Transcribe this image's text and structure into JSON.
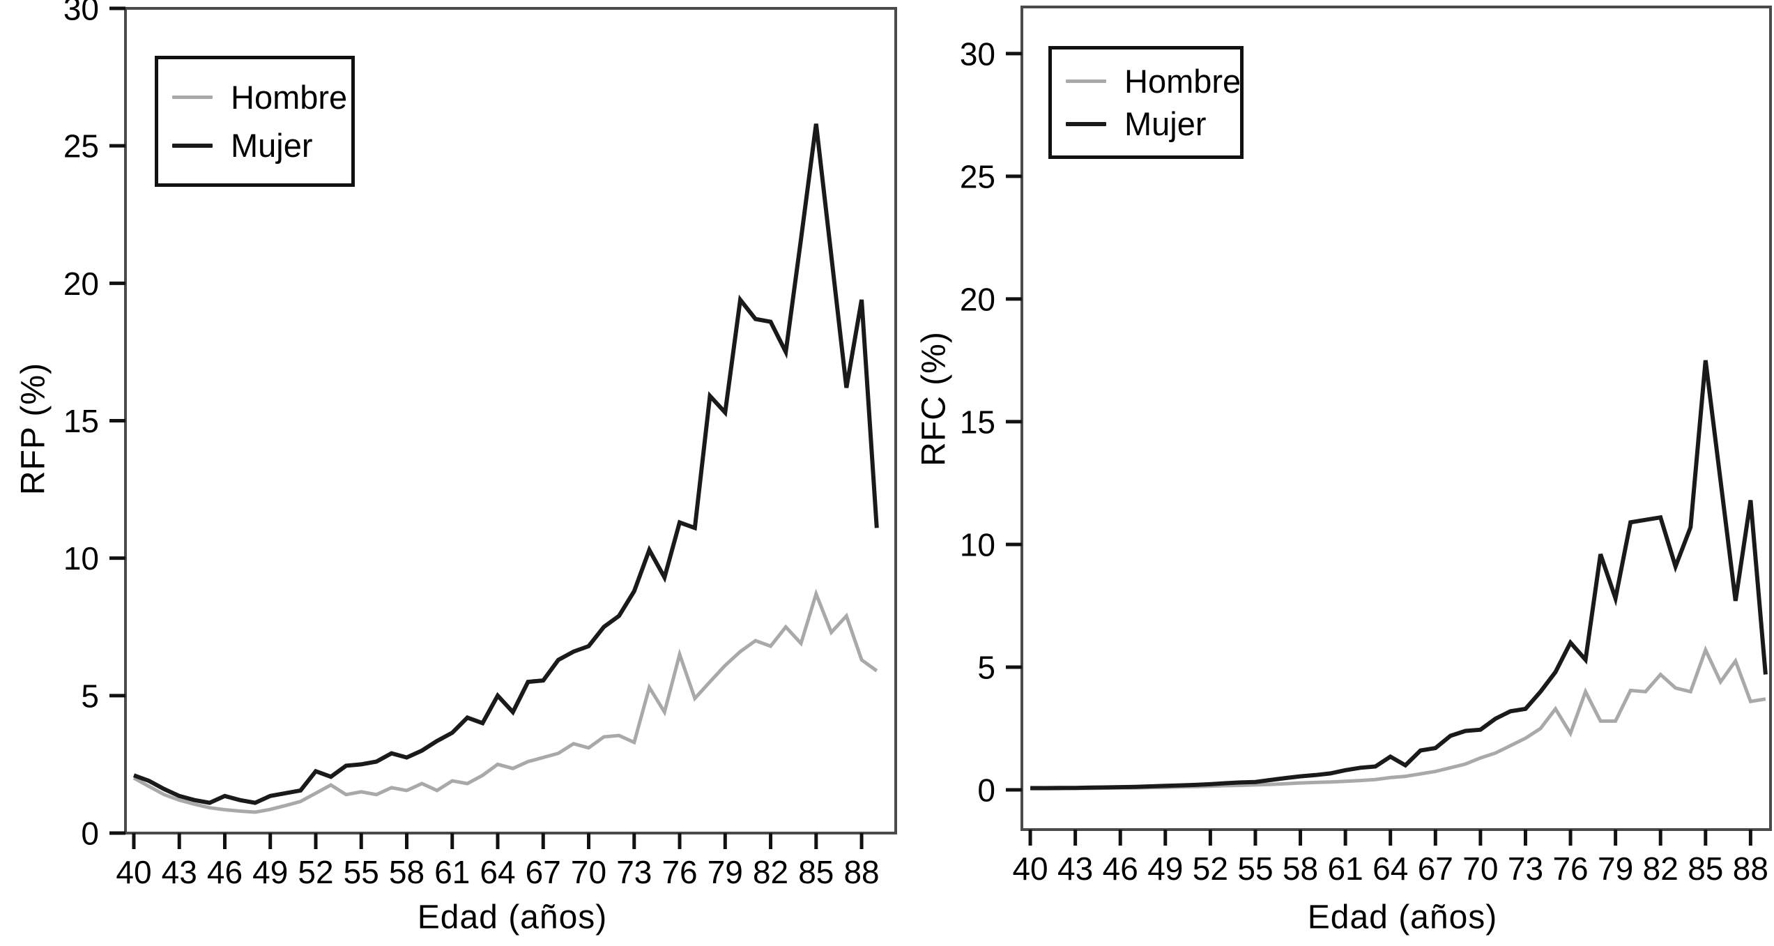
{
  "figure": {
    "background": "#ffffff",
    "axis_color": "#4a4a4a",
    "tick_color": "#111111",
    "text_color": "#000000"
  },
  "chart_data": [
    {
      "type": "line",
      "title": "",
      "xlabel": "Edad (años)",
      "ylabel": "RFP (%)",
      "xlim": [
        39.45,
        90.25
      ],
      "ylim": [
        0,
        30
      ],
      "x_ticks": [
        40,
        43,
        46,
        49,
        52,
        55,
        58,
        61,
        64,
        67,
        70,
        73,
        76,
        79,
        82,
        85,
        88
      ],
      "y_ticks": [
        0,
        5,
        10,
        15,
        20,
        25,
        30
      ],
      "grid": false,
      "legend_position": "top-left",
      "x": [
        40,
        41,
        42,
        43,
        44,
        45,
        46,
        47,
        48,
        49,
        50,
        51,
        52,
        53,
        54,
        55,
        56,
        57,
        58,
        59,
        60,
        61,
        62,
        63,
        64,
        65,
        66,
        67,
        68,
        69,
        70,
        71,
        72,
        73,
        74,
        75,
        76,
        77,
        78,
        79,
        80,
        81,
        82,
        83,
        84,
        85,
        86,
        87,
        88,
        89
      ],
      "series": [
        {
          "name": "Hombre",
          "color": "#a9a9a9",
          "width": 5,
          "values": [
            2.0,
            1.7,
            1.4,
            1.2,
            1.05,
            0.92,
            0.85,
            0.8,
            0.76,
            0.86,
            1.0,
            1.15,
            1.45,
            1.75,
            1.4,
            1.5,
            1.4,
            1.65,
            1.55,
            1.8,
            1.55,
            1.9,
            1.8,
            2.1,
            2.5,
            2.35,
            2.6,
            2.75,
            2.9,
            3.25,
            3.1,
            3.5,
            3.55,
            3.3,
            5.3,
            4.4,
            6.5,
            4.9,
            5.5,
            6.1,
            6.6,
            7.0,
            6.8,
            7.5,
            6.9,
            8.7,
            7.3,
            7.9,
            6.3,
            5.9
          ]
        },
        {
          "name": "Mujer",
          "color": "#1a1a1a",
          "width": 6,
          "values": [
            2.1,
            1.9,
            1.6,
            1.35,
            1.2,
            1.1,
            1.35,
            1.2,
            1.1,
            1.35,
            1.45,
            1.55,
            2.25,
            2.05,
            2.45,
            2.5,
            2.6,
            2.9,
            2.75,
            3.0,
            3.35,
            3.65,
            4.2,
            4.0,
            5.0,
            4.4,
            5.5,
            5.55,
            6.3,
            6.6,
            6.8,
            7.5,
            7.9,
            8.8,
            10.3,
            9.3,
            11.3,
            11.1,
            15.9,
            15.3,
            19.4,
            18.7,
            18.6,
            17.5,
            21.6,
            25.8,
            21.0,
            16.2,
            19.4,
            11.1
          ]
        }
      ]
    },
    {
      "type": "line",
      "title": "",
      "xlabel": "Edad (años)",
      "ylabel": "RFC (%)",
      "xlim": [
        39.44,
        89.33
      ],
      "ylim": [
        -1.62,
        31.9
      ],
      "x_ticks": [
        40,
        43,
        46,
        49,
        52,
        55,
        58,
        61,
        64,
        67,
        70,
        73,
        76,
        79,
        82,
        85,
        88
      ],
      "y_ticks": [
        0,
        5,
        10,
        15,
        20,
        25,
        30
      ],
      "grid": false,
      "legend_position": "top-left",
      "x": [
        40,
        41,
        42,
        43,
        44,
        45,
        46,
        47,
        48,
        49,
        50,
        51,
        52,
        53,
        54,
        55,
        56,
        57,
        58,
        59,
        60,
        61,
        62,
        63,
        64,
        65,
        66,
        67,
        68,
        69,
        70,
        71,
        72,
        73,
        74,
        75,
        76,
        77,
        78,
        79,
        80,
        81,
        82,
        83,
        84,
        85,
        86,
        87,
        88,
        89
      ],
      "series": [
        {
          "name": "Hombre",
          "color": "#a9a9a9",
          "width": 5,
          "values": [
            0.05,
            0.05,
            0.05,
            0.06,
            0.06,
            0.07,
            0.08,
            0.08,
            0.09,
            0.1,
            0.12,
            0.13,
            0.15,
            0.17,
            0.18,
            0.2,
            0.22,
            0.25,
            0.28,
            0.3,
            0.32,
            0.35,
            0.38,
            0.42,
            0.5,
            0.55,
            0.65,
            0.75,
            0.9,
            1.05,
            1.3,
            1.5,
            1.8,
            2.1,
            2.5,
            3.3,
            2.3,
            4.0,
            2.8,
            2.8,
            4.05,
            4.0,
            4.7,
            4.15,
            4.0,
            5.7,
            4.4,
            5.25,
            3.6,
            3.7
          ]
        },
        {
          "name": "Mujer",
          "color": "#1a1a1a",
          "width": 6,
          "values": [
            0.07,
            0.07,
            0.08,
            0.08,
            0.09,
            0.1,
            0.11,
            0.12,
            0.14,
            0.16,
            0.18,
            0.2,
            0.23,
            0.27,
            0.3,
            0.32,
            0.4,
            0.48,
            0.55,
            0.6,
            0.67,
            0.8,
            0.9,
            0.95,
            1.35,
            1.0,
            1.6,
            1.7,
            2.2,
            2.4,
            2.45,
            2.9,
            3.2,
            3.3,
            4.0,
            4.8,
            6.0,
            5.3,
            9.6,
            7.8,
            10.9,
            11.0,
            11.1,
            9.1,
            10.7,
            17.5,
            12.6,
            7.7,
            11.8,
            4.7
          ]
        }
      ]
    }
  ]
}
